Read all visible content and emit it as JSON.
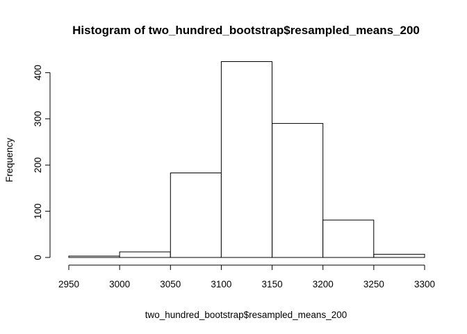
{
  "chart_data": {
    "type": "bar",
    "title": "Histogram of two_hundred_bootstrap$resampled_means_200",
    "xlabel": "two_hundred_bootstrap$resampled_means_200",
    "ylabel": "Frequency",
    "xlim": [
      2950,
      3300
    ],
    "ylim": [
      0,
      430
    ],
    "x_ticks": [
      2950,
      3000,
      3050,
      3100,
      3150,
      3200,
      3250,
      3300
    ],
    "y_ticks": [
      0,
      100,
      200,
      300,
      400
    ],
    "bins": [
      {
        "start": 2950,
        "end": 3000,
        "value": 3
      },
      {
        "start": 3000,
        "end": 3050,
        "value": 12
      },
      {
        "start": 3050,
        "end": 3100,
        "value": 183
      },
      {
        "start": 3100,
        "end": 3150,
        "value": 424
      },
      {
        "start": 3150,
        "end": 3200,
        "value": 290
      },
      {
        "start": 3200,
        "end": 3250,
        "value": 81
      },
      {
        "start": 3250,
        "end": 3300,
        "value": 7
      }
    ],
    "grid": false,
    "legend": "none",
    "colors": {
      "bar_fill": "#ffffff",
      "bar_stroke": "#000000"
    }
  }
}
